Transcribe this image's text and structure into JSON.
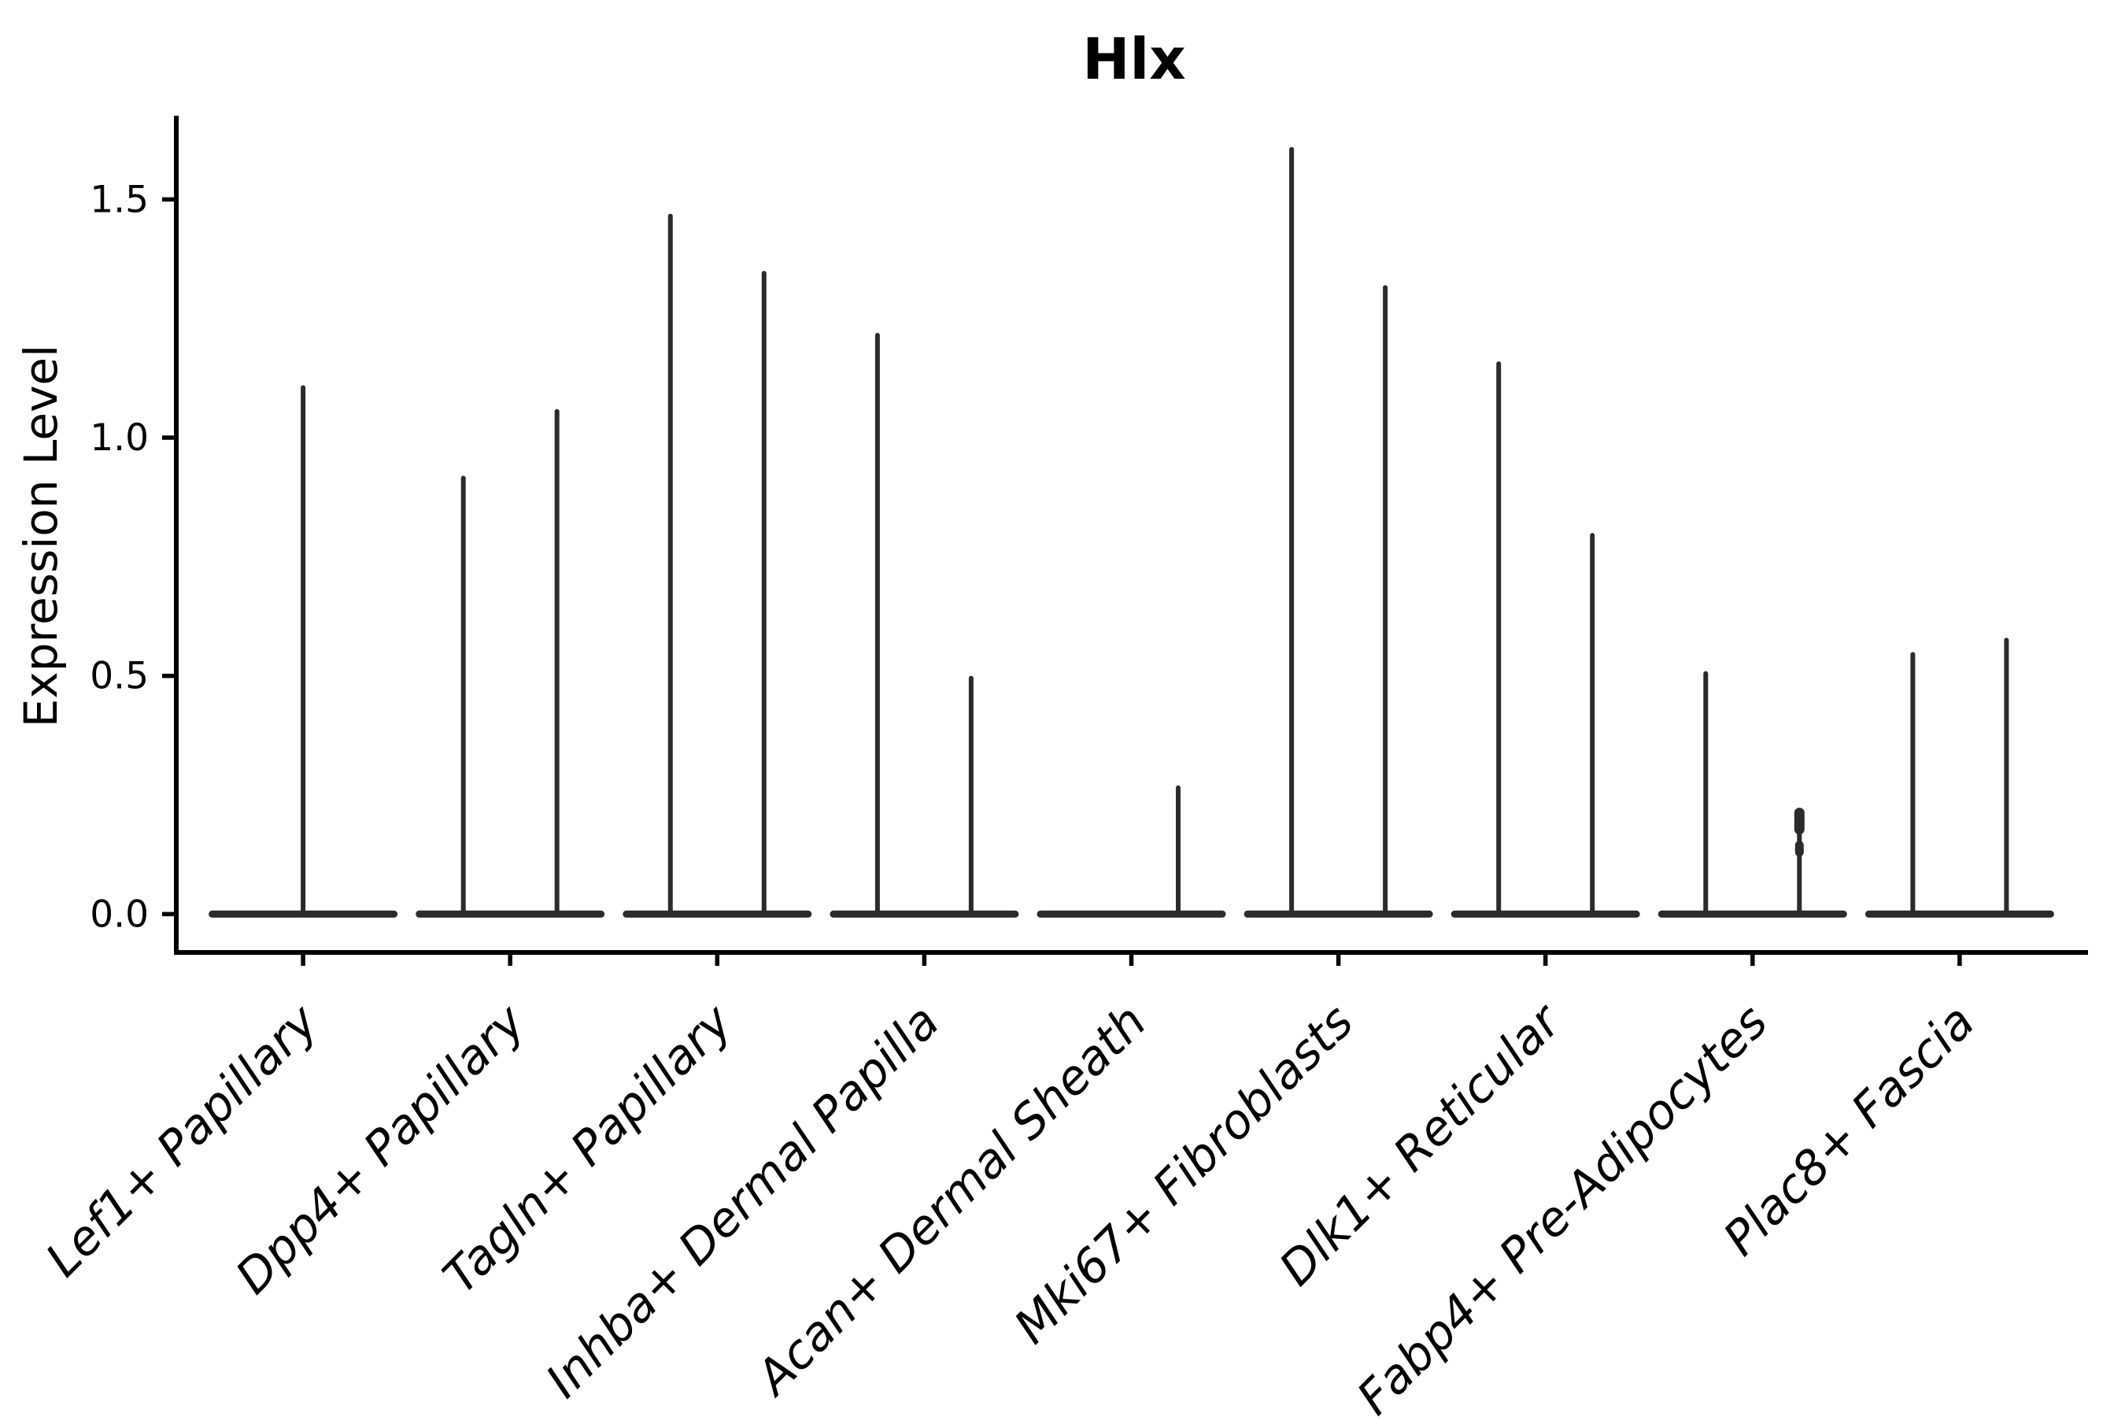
{
  "title": "Hlx",
  "style": {
    "violin_color": "#2b2b2b",
    "axis_color": "#000000",
    "background": "#ffffff"
  },
  "chart_data": {
    "type": "violin",
    "title": "Hlx",
    "xlabel": "",
    "ylabel": "Expression Level",
    "ylim": [
      -0.08,
      1.68
    ],
    "yticks": [
      0.0,
      0.5,
      1.0,
      1.5
    ],
    "ytick_labels": [
      "0.0",
      "0.5",
      "1.0",
      "1.5"
    ],
    "grid": false,
    "legend": "none",
    "note": "Seurat-style violin plot; each category shows needle-thin violins (most cells at 0 expression) with a flat base at 0 and thin spikes rising to the max expression value. Categories with two spikes have two dodged violins (left/right); Lef1+ Papillary has a single centered violin; Acan+ Dermal Sheath shows only the right violin spike.",
    "categories": [
      "Lef1+ Papillary",
      "Dpp4+ Papillary",
      "Tagln+ Papillary",
      "Inhba+ Dermal Papilla",
      "Acan+ Dermal Sheath",
      "Mki67+ Fibroblasts",
      "Dlk1+ Reticular",
      "Fabp4+ Pre-Adipocytes",
      "Plac8+ Fascia"
    ],
    "violins": [
      {
        "category": "Lef1+ Papillary",
        "baseline": 0.0,
        "spikes": [
          {
            "position": "center",
            "max": 1.11
          }
        ]
      },
      {
        "category": "Dpp4+ Papillary",
        "baseline": 0.0,
        "spikes": [
          {
            "position": "left",
            "max": 0.92
          },
          {
            "position": "right",
            "max": 1.06
          }
        ]
      },
      {
        "category": "Tagln+ Papillary",
        "baseline": 0.0,
        "spikes": [
          {
            "position": "left",
            "max": 1.47
          },
          {
            "position": "right",
            "max": 1.35
          }
        ]
      },
      {
        "category": "Inhba+ Dermal Papilla",
        "baseline": 0.0,
        "spikes": [
          {
            "position": "left",
            "max": 1.22
          },
          {
            "position": "right",
            "max": 0.5
          }
        ]
      },
      {
        "category": "Acan+ Dermal Sheath",
        "baseline": 0.0,
        "spikes": [
          {
            "position": "right",
            "max": 0.27
          }
        ]
      },
      {
        "category": "Mki67+ Fibroblasts",
        "baseline": 0.0,
        "spikes": [
          {
            "position": "left",
            "max": 1.61
          },
          {
            "position": "right",
            "max": 1.32
          }
        ]
      },
      {
        "category": "Dlk1+ Reticular",
        "baseline": 0.0,
        "spikes": [
          {
            "position": "left",
            "max": 1.16
          },
          {
            "position": "right",
            "max": 0.8
          }
        ]
      },
      {
        "category": "Fabp4+ Pre-Adipocytes",
        "baseline": 0.0,
        "spikes": [
          {
            "position": "left",
            "max": 0.51
          },
          {
            "position": "right",
            "max": 0.22,
            "knob": true
          }
        ]
      },
      {
        "category": "Plac8+ Fascia",
        "baseline": 0.0,
        "spikes": [
          {
            "position": "left",
            "max": 0.55
          },
          {
            "position": "right",
            "max": 0.58
          }
        ]
      }
    ]
  }
}
